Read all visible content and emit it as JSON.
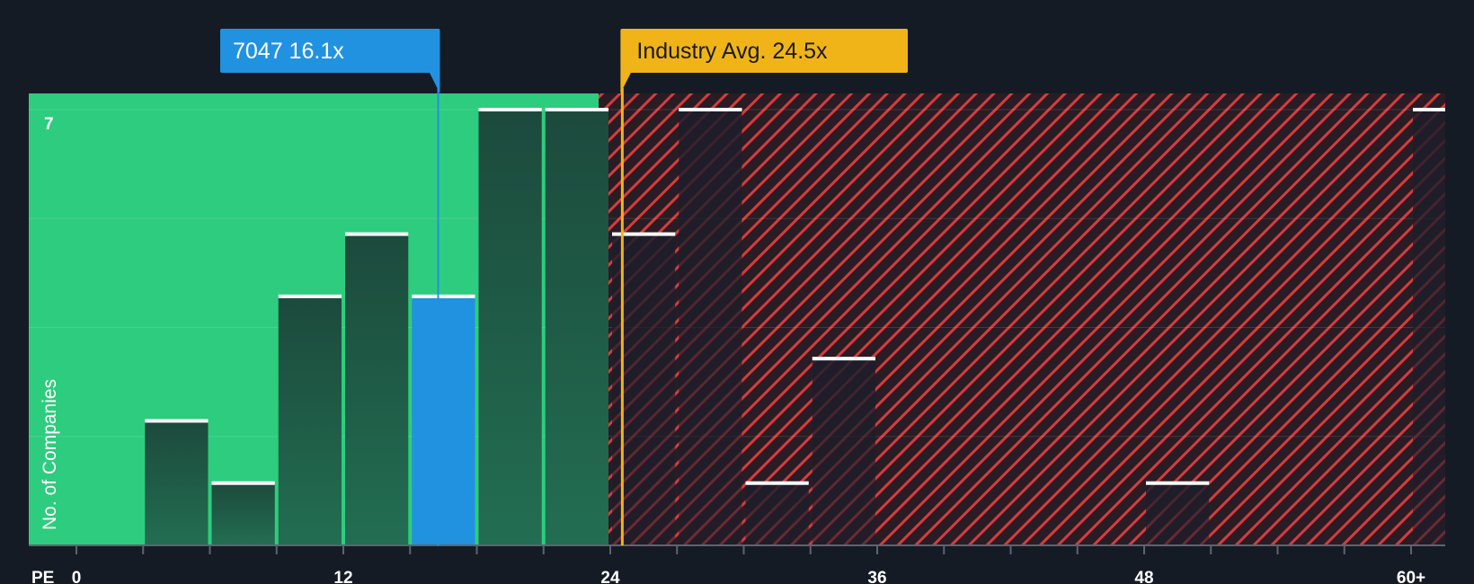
{
  "chart_data": {
    "type": "bar",
    "title": "",
    "xlabel": "PE",
    "ylabel": "No. of Companies",
    "xlim": [
      0,
      61
    ],
    "ylim": [
      0,
      7
    ],
    "x_tick_values": [
      0,
      12,
      24,
      36,
      48,
      60
    ],
    "x_tick_labels": [
      "0",
      "12",
      "24",
      "36",
      "48",
      "60+"
    ],
    "y_tick_label": "7",
    "bin_width": 3,
    "bins": [
      {
        "start": 3,
        "count": 2
      },
      {
        "start": 6,
        "count": 1
      },
      {
        "start": 9,
        "count": 4
      },
      {
        "start": 12,
        "count": 5
      },
      {
        "start": 15,
        "count": 4,
        "highlight": true
      },
      {
        "start": 18,
        "count": 7
      },
      {
        "start": 21,
        "count": 7
      },
      {
        "start": 24,
        "count": 5
      },
      {
        "start": 27,
        "count": 7
      },
      {
        "start": 30,
        "count": 1
      },
      {
        "start": 33,
        "count": 3
      },
      {
        "start": 48,
        "count": 1
      },
      {
        "start": 60,
        "count": 7
      }
    ],
    "company": {
      "ticker": "7047",
      "pe": 16.1,
      "label": "7047 16.1x"
    },
    "industry": {
      "avg_pe": 24.5,
      "label": "Industry Avg. 24.5x"
    },
    "fair_zone_end": 24
  },
  "colors": {
    "background": "#151b24",
    "fair_zone": "#2ecc7e",
    "overvalued_stripe": "#d63c3c",
    "company_bar": "#2192e0",
    "company_callout": "#2192e0",
    "industry_callout": "#f0b419",
    "bar_cap": "#ffffff"
  }
}
